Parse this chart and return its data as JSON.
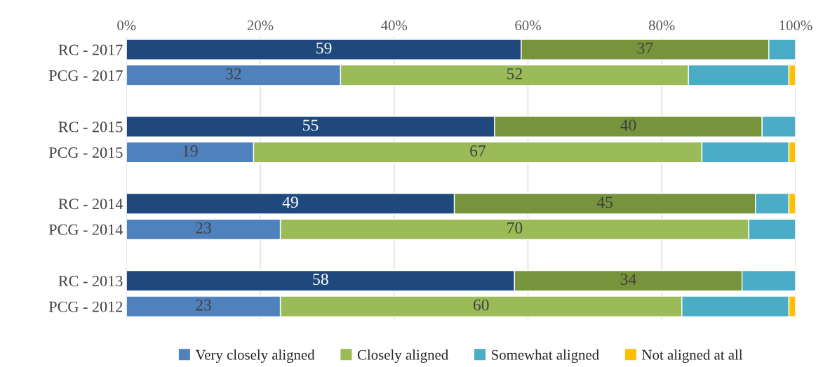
{
  "chart_data": {
    "type": "bar",
    "orientation": "horizontal",
    "stacked": true,
    "categories": [
      "RC - 2017",
      "PCG - 2017",
      null,
      "RC - 2015",
      "PCG - 2015",
      null,
      "RC - 2014",
      "PCG - 2014",
      null,
      "RC - 2013",
      "PCG - 2012"
    ],
    "series": [
      {
        "name": "Very closely aligned",
        "color": "#4f81bd",
        "colors": [
          "#1f497d",
          "#4f81bd",
          null,
          "#1f497d",
          "#4f81bd",
          null,
          "#1f497d",
          "#4f81bd",
          null,
          "#1f497d",
          "#4f81bd"
        ],
        "values": [
          59,
          32,
          null,
          55,
          19,
          null,
          49,
          23,
          null,
          58,
          23
        ],
        "value_labels": [
          "59",
          "32",
          null,
          "55",
          "19",
          null,
          "49",
          "23",
          null,
          "58",
          "23"
        ]
      },
      {
        "name": "Closely aligned",
        "color": "#9bbb59",
        "colors": [
          "#77933c",
          "#9bbb59",
          null,
          "#77933c",
          "#9bbb59",
          null,
          "#77933c",
          "#9bbb59",
          null,
          "#77933c",
          "#9bbb59"
        ],
        "values": [
          37,
          52,
          null,
          40,
          67,
          null,
          45,
          70,
          null,
          34,
          60
        ],
        "value_labels": [
          "37",
          "52",
          null,
          "40",
          "67",
          null,
          "45",
          "70",
          null,
          "34",
          "60"
        ]
      },
      {
        "name": "Somewhat aligned",
        "color": "#4bacc6",
        "values": [
          4,
          15,
          null,
          5,
          13,
          null,
          5,
          7,
          null,
          8,
          16
        ]
      },
      {
        "name": "Not aligned at all",
        "color": "#ffc000",
        "values": [
          0,
          1,
          null,
          0,
          1,
          null,
          1,
          0,
          null,
          0,
          1
        ]
      }
    ],
    "xlim": [
      0,
      100
    ],
    "xticks": [
      {
        "value": 0,
        "label": "0%"
      },
      {
        "value": 20,
        "label": "20%"
      },
      {
        "value": 40,
        "label": "40%"
      },
      {
        "value": 60,
        "label": "60%"
      },
      {
        "value": 80,
        "label": "80%"
      },
      {
        "value": 100,
        "label": "100%"
      }
    ],
    "grid": "x",
    "legend": "bottom"
  }
}
